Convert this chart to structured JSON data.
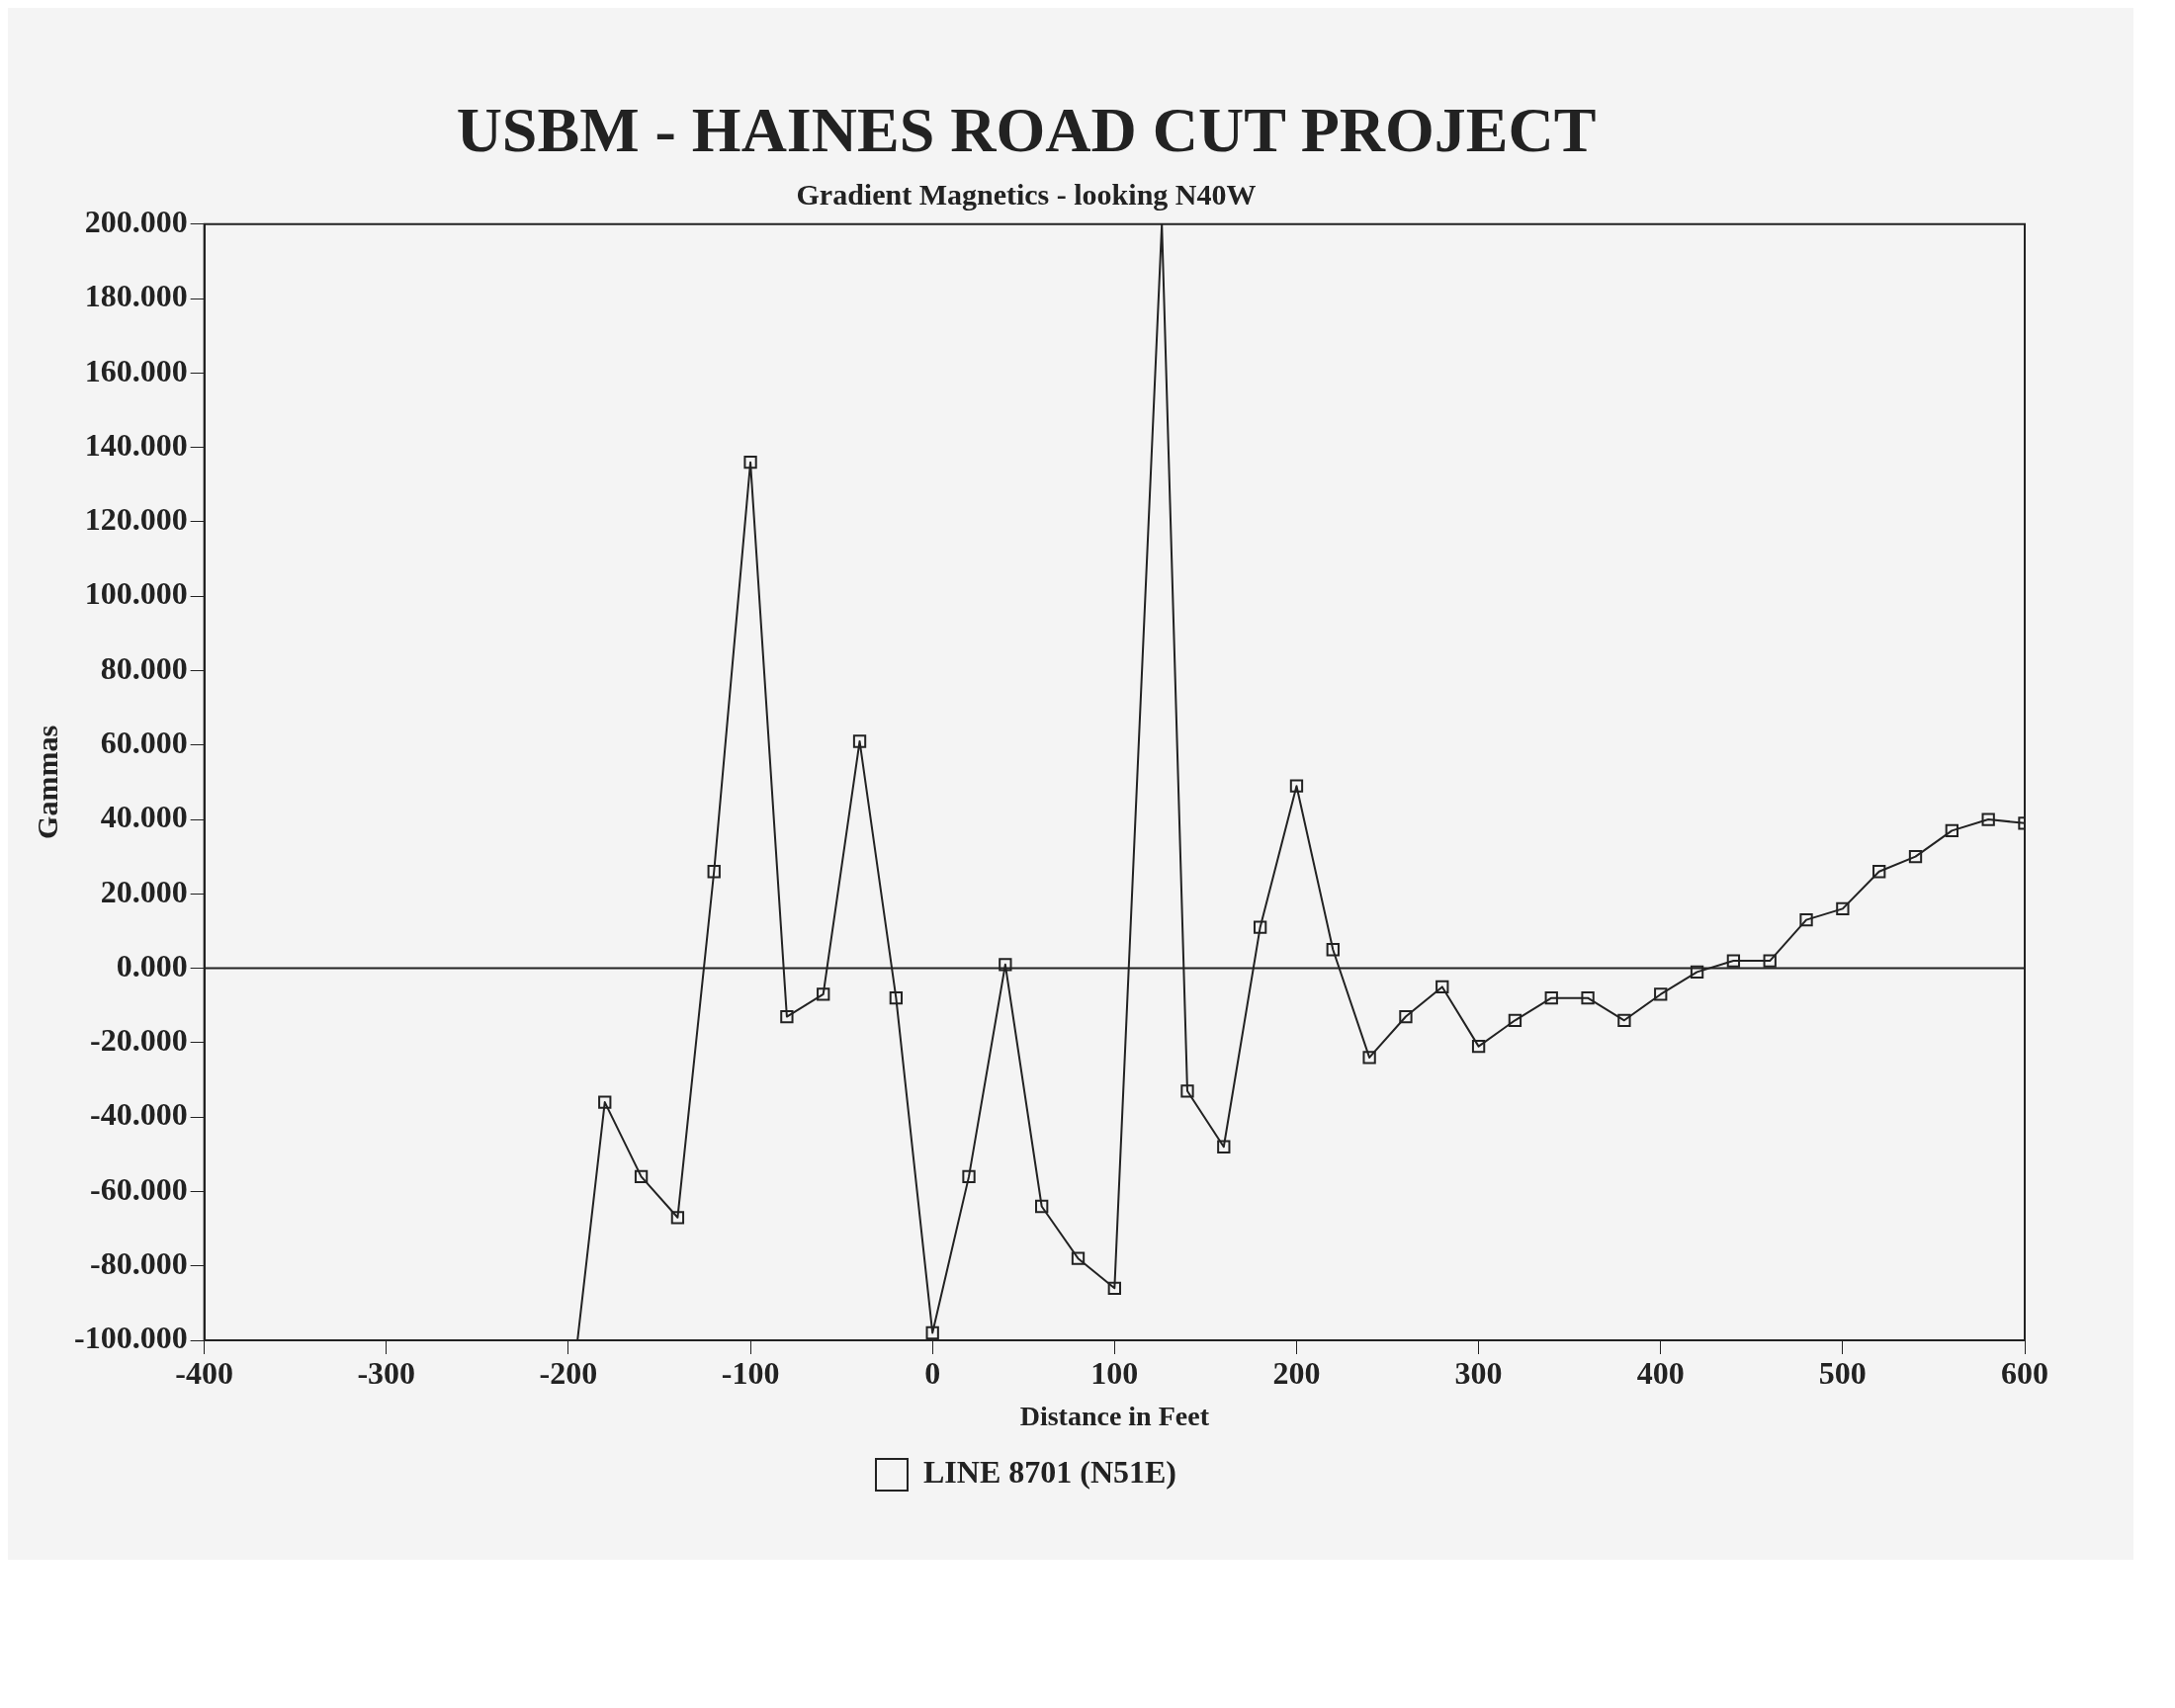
{
  "chart_data": {
    "type": "line",
    "title": "USBM - HAINES ROAD CUT PROJECT",
    "subtitle": "Gradient Magnetics - looking N40W",
    "xlabel": "Distance in Feet",
    "ylabel": "Gammas",
    "series": [
      {
        "name": "LINE 8701 (N51E)",
        "color": "#222222",
        "x": [
          -195,
          -180,
          -160,
          -140,
          -120,
          -100,
          -80,
          -60,
          -40,
          -20,
          0,
          20,
          40,
          60,
          80,
          100,
          126,
          140,
          160,
          180,
          200,
          220,
          240,
          260,
          280,
          300,
          320,
          340,
          360,
          380,
          400,
          420,
          440,
          460,
          480,
          500,
          520,
          540,
          560,
          580,
          600
        ],
        "values": [
          -100,
          -36,
          -56,
          -67,
          26,
          136,
          -13,
          -7,
          61,
          -8,
          -98,
          -56,
          1,
          -64,
          -78,
          -86,
          200,
          -33,
          -48,
          11,
          49,
          5,
          -24,
          -13,
          -5,
          -21,
          -14,
          -8,
          -8,
          -14,
          -7,
          -1,
          2,
          2,
          13,
          16,
          26,
          30,
          37,
          40,
          39
        ]
      }
    ],
    "xlim": [
      -400,
      600
    ],
    "xticks": [
      -400,
      -300,
      -200,
      -100,
      0,
      100,
      200,
      300,
      400,
      500,
      600
    ],
    "ylim": [
      -100,
      200
    ],
    "yticks": [
      {
        "value": -100,
        "label": "-100.000"
      },
      {
        "value": -80,
        "label": "-80.000"
      },
      {
        "value": -60,
        "label": "-60.000"
      },
      {
        "value": -40,
        "label": "-40.000"
      },
      {
        "value": -20,
        "label": "-20.000"
      },
      {
        "value": 0,
        "label": "0.000"
      },
      {
        "value": 20,
        "label": "20.000"
      },
      {
        "value": 40,
        "label": "40.000"
      },
      {
        "value": 60,
        "label": "60.000"
      },
      {
        "value": 80,
        "label": "80.000"
      },
      {
        "value": 100,
        "label": "100.000"
      },
      {
        "value": 120,
        "label": "120.000"
      },
      {
        "value": 140,
        "label": "140.000"
      },
      {
        "value": 160,
        "label": "160.000"
      },
      {
        "value": 180,
        "label": "180.000"
      },
      {
        "value": 200,
        "label": "200.000"
      }
    ],
    "ref_lines": [
      {
        "axis": "y",
        "value": 0,
        "color": "#222222"
      }
    ],
    "grid": false,
    "legend": "bottom",
    "marker": "square",
    "line_style": "solid"
  }
}
